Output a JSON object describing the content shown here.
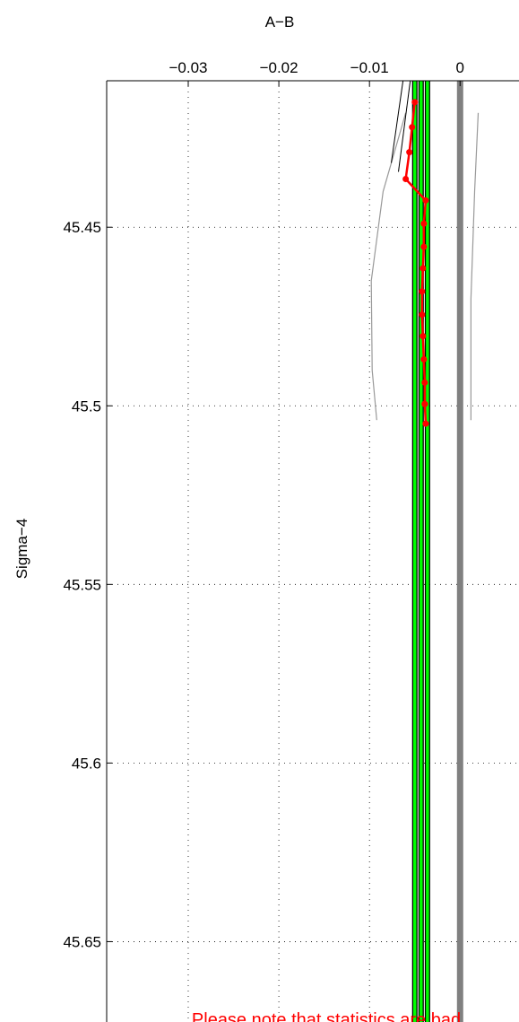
{
  "chart_data": {
    "type": "line",
    "xlabel": "A−B",
    "ylabel": "Sigma−4",
    "xlim": [
      -0.039,
      0.0065
    ],
    "ylim": [
      45.409,
      45.6725
    ],
    "y_reversed": true,
    "x_axis_position": "top",
    "grid": true,
    "grid_style": "dotted",
    "xticks": [
      -0.03,
      -0.02,
      -0.01,
      0
    ],
    "xtick_labels": [
      "−0.03",
      "−0.02",
      "−0.01",
      "0"
    ],
    "yticks": [
      45.45,
      45.5,
      45.55,
      45.6,
      45.65
    ],
    "ytick_labels": [
      "45.45",
      "45.5",
      "45.55",
      "45.6",
      "45.65"
    ],
    "note": "Please note that statistics are bad",
    "colors": {
      "main": "#ff0000",
      "band": "#00ff00",
      "zero": "#808080",
      "envelope": "#999999",
      "dark": "#000000",
      "note": "#ff0000"
    },
    "series": [
      {
        "role": "main",
        "x": [
          -0.005,
          -0.0053,
          -0.0056,
          -0.006,
          -0.0038,
          -0.004,
          -0.004,
          -0.0041,
          -0.0042,
          -0.0042,
          -0.0041,
          -0.004,
          -0.0039,
          -0.0039,
          -0.0038,
          -0.0039,
          -0.0038
        ],
        "y": [
          45.415,
          45.422,
          45.429,
          45.4365,
          45.4425,
          45.449,
          45.4555,
          45.4615,
          45.468,
          45.4745,
          45.4805,
          45.487,
          45.4935,
          45.4995,
          45.505,
          45.4995,
          45.505
        ]
      },
      {
        "role": "envelope",
        "x": [
          -0.006,
          -0.0085,
          -0.0098,
          -0.0097,
          -0.0092
        ],
        "y": [
          45.418,
          45.44,
          45.465,
          45.49,
          45.504
        ]
      },
      {
        "role": "envelope",
        "x": [
          0.002,
          0.0016,
          0.0012,
          0.0012
        ],
        "y": [
          45.418,
          45.44,
          45.47,
          45.504
        ]
      },
      {
        "role": "dark",
        "x": [
          -0.0055,
          -0.0068
        ],
        "y": [
          45.409,
          45.4345
        ]
      },
      {
        "role": "dark",
        "x": [
          -0.0063,
          -0.0076
        ],
        "y": [
          45.409,
          45.432
        ]
      }
    ],
    "vertical_lines": [
      {
        "role": "band",
        "x": -0.005
      },
      {
        "role": "band",
        "x": -0.0043
      },
      {
        "role": "band",
        "x": -0.0036
      },
      {
        "role": "zero",
        "x": 0
      }
    ]
  }
}
